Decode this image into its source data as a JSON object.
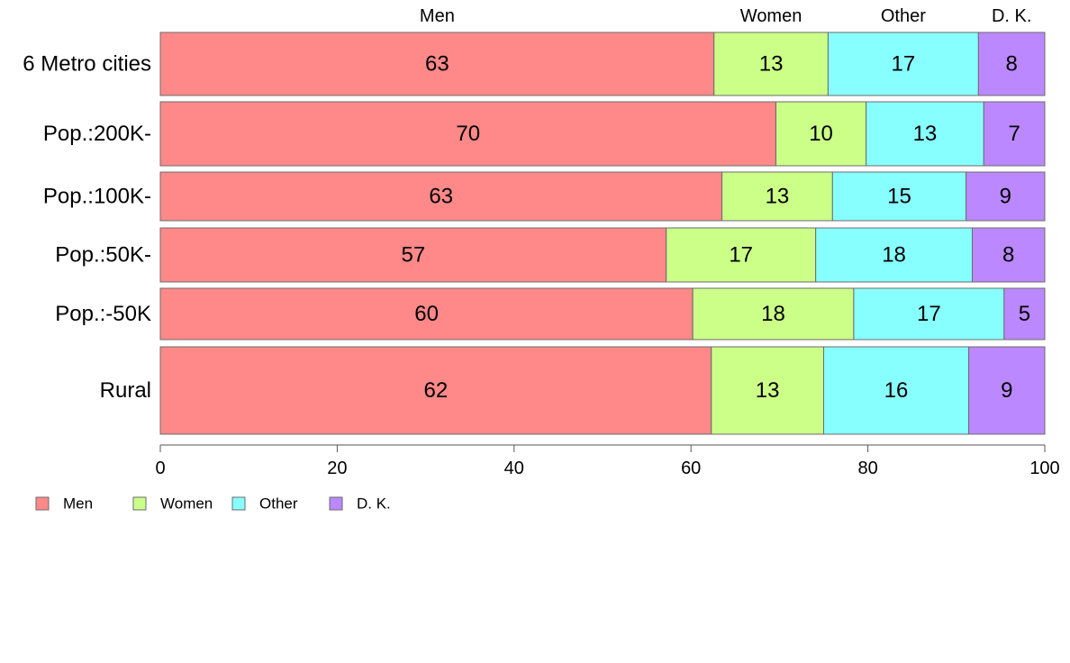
{
  "chart_data": {
    "type": "bar",
    "orientation": "horizontal",
    "stacked": true,
    "categories": [
      "6 Metro cities",
      "Pop.:200K-",
      "Pop.:100K-",
      "Pop.:50K-",
      "Pop.:-50K",
      "Rural"
    ],
    "series": [
      {
        "name": "Men",
        "color": "#ff8888",
        "values": [
          62.6,
          69.6,
          63.5,
          57.2,
          60.2,
          62.3
        ],
        "labels": [
          "63",
          "70",
          "63",
          "57",
          "60",
          "62"
        ]
      },
      {
        "name": "Women",
        "color": "#ccff88",
        "values": [
          12.9,
          10.2,
          12.5,
          16.9,
          18.2,
          12.7
        ],
        "labels": [
          "13",
          "10",
          "13",
          "17",
          "18",
          "13"
        ]
      },
      {
        "name": "Other",
        "color": "#88ffff",
        "values": [
          17.0,
          13.3,
          15.1,
          17.7,
          17.0,
          16.4
        ],
        "labels": [
          "17",
          "13",
          "15",
          "18",
          "17",
          "16"
        ]
      },
      {
        "name": "D. K.",
        "color": "#bb88ff",
        "values": [
          7.5,
          6.9,
          8.9,
          8.2,
          4.6,
          8.6
        ],
        "labels": [
          "8",
          "7",
          "9",
          "8",
          "5",
          "9"
        ]
      }
    ],
    "column_headers": [
      "Men",
      "Women",
      "Other",
      "D. K."
    ],
    "xlim": [
      0,
      100
    ],
    "xticks": [
      "0",
      "20",
      "40",
      "60",
      "80",
      "100"
    ],
    "grid": false,
    "legend_position": "bottom-left"
  }
}
